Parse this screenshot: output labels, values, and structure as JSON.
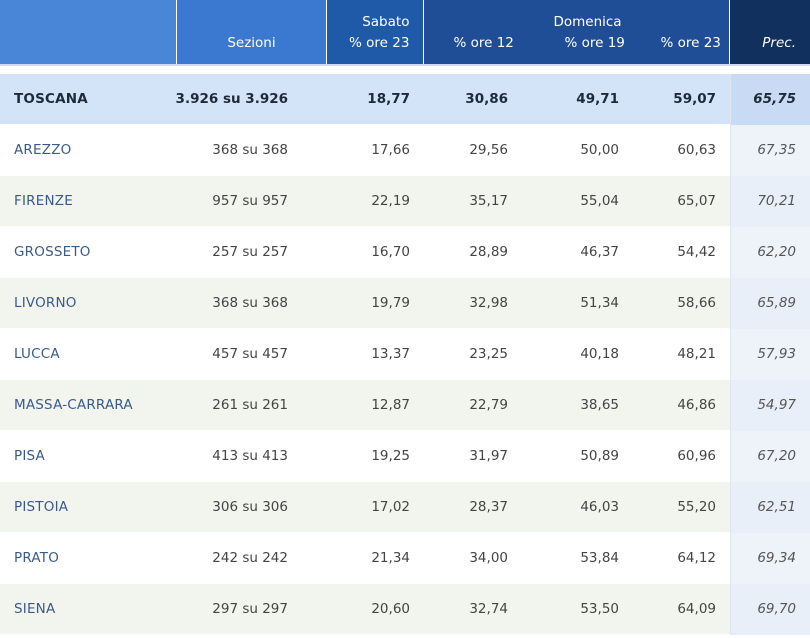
{
  "header": {
    "sezioni": "Sezioni",
    "sabato": "Sabato",
    "sabato_col": "% ore 23",
    "domenica": "Domenica",
    "dom_col1": "% ore 12",
    "dom_col2": "% ore 19",
    "dom_col3": "% ore 23",
    "prec": "Prec."
  },
  "rows": [
    {
      "name": "TOSCANA",
      "sezioni": "3.926 su 3.926",
      "sab23": "18,77",
      "dom12": "30,86",
      "dom19": "49,71",
      "dom23": "59,07",
      "prec": "65,75"
    },
    {
      "name": "AREZZO",
      "sezioni": "368 su 368",
      "sab23": "17,66",
      "dom12": "29,56",
      "dom19": "50,00",
      "dom23": "60,63",
      "prec": "67,35"
    },
    {
      "name": "FIRENZE",
      "sezioni": "957 su 957",
      "sab23": "22,19",
      "dom12": "35,17",
      "dom19": "55,04",
      "dom23": "65,07",
      "prec": "70,21"
    },
    {
      "name": "GROSSETO",
      "sezioni": "257 su 257",
      "sab23": "16,70",
      "dom12": "28,89",
      "dom19": "46,37",
      "dom23": "54,42",
      "prec": "62,20"
    },
    {
      "name": "LIVORNO",
      "sezioni": "368 su 368",
      "sab23": "19,79",
      "dom12": "32,98",
      "dom19": "51,34",
      "dom23": "58,66",
      "prec": "65,89"
    },
    {
      "name": "LUCCA",
      "sezioni": "457 su 457",
      "sab23": "13,37",
      "dom12": "23,25",
      "dom19": "40,18",
      "dom23": "48,21",
      "prec": "57,93"
    },
    {
      "name": "MASSA-CARRARA",
      "sezioni": "261 su 261",
      "sab23": "12,87",
      "dom12": "22,79",
      "dom19": "38,65",
      "dom23": "46,86",
      "prec": "54,97"
    },
    {
      "name": "PISA",
      "sezioni": "413 su 413",
      "sab23": "19,25",
      "dom12": "31,97",
      "dom19": "50,89",
      "dom23": "60,96",
      "prec": "67,20"
    },
    {
      "name": "PISTOIA",
      "sezioni": "306 su 306",
      "sab23": "17,02",
      "dom12": "28,37",
      "dom19": "46,03",
      "dom23": "55,20",
      "prec": "62,51"
    },
    {
      "name": "PRATO",
      "sezioni": "242 su 242",
      "sab23": "21,34",
      "dom12": "34,00",
      "dom19": "53,84",
      "dom23": "64,12",
      "prec": "69,34"
    },
    {
      "name": "SIENA",
      "sezioni": "297 su 297",
      "sab23": "20,60",
      "dom12": "32,74",
      "dom19": "53,50",
      "dom23": "64,09",
      "prec": "69,70"
    }
  ]
}
